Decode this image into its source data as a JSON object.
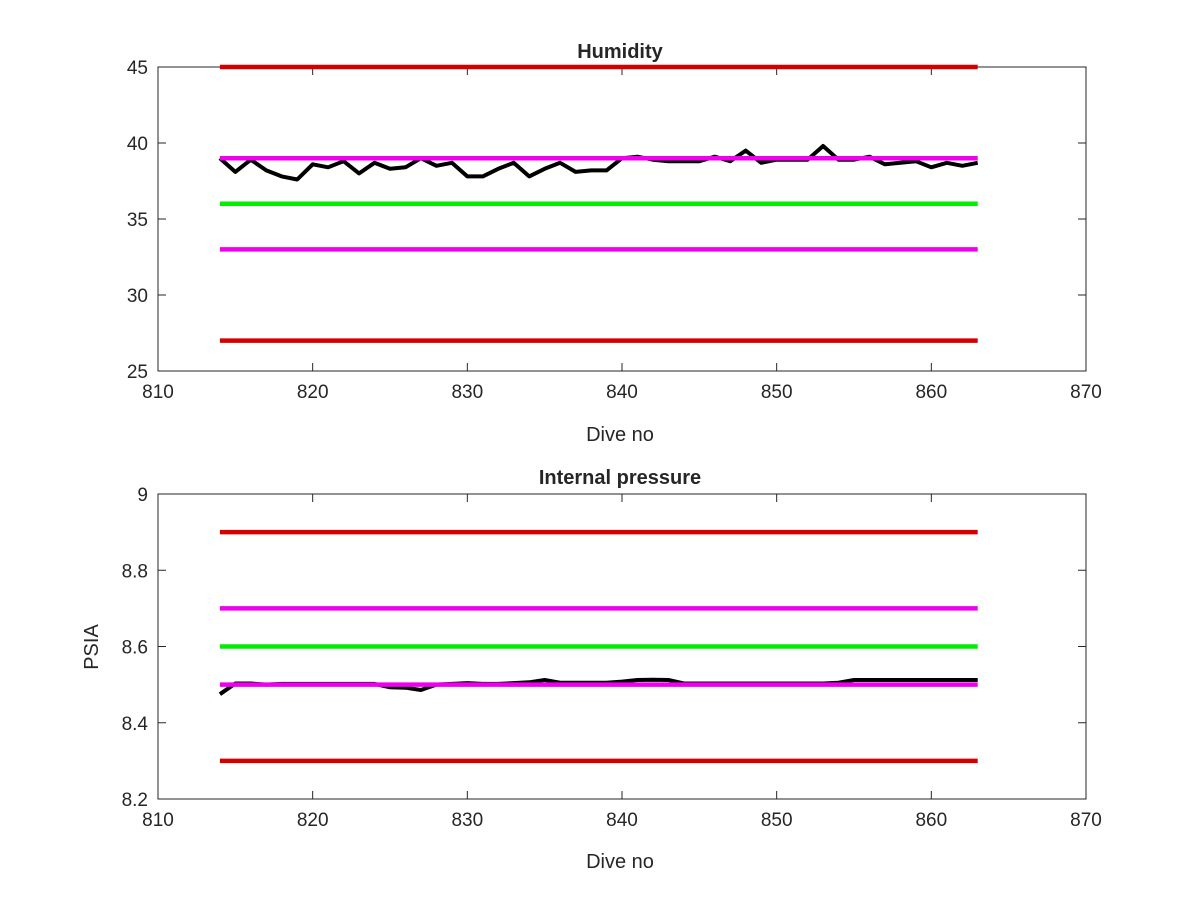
{
  "chart_data": [
    {
      "type": "line",
      "title": "Humidity",
      "xlabel": "Dive no",
      "ylabel": "",
      "xlim": [
        810,
        870
      ],
      "ylim": [
        25,
        45
      ],
      "xticks": [
        810,
        820,
        830,
        840,
        850,
        860,
        870
      ],
      "yticks": [
        25,
        30,
        35,
        40,
        45
      ],
      "grid": false,
      "series": [
        {
          "color": "#000000",
          "x": [
            814,
            815,
            816,
            817,
            818,
            819,
            820,
            821,
            822,
            823,
            824,
            825,
            826,
            827,
            828,
            829,
            830,
            831,
            832,
            833,
            834,
            835,
            836,
            837,
            838,
            839,
            840,
            841,
            842,
            843,
            844,
            845,
            846,
            847,
            848,
            849,
            850,
            851,
            852,
            853,
            854,
            855,
            856,
            857,
            858,
            859,
            860,
            861,
            862,
            863
          ],
          "y": [
            39.0,
            38.1,
            38.9,
            38.2,
            37.8,
            37.6,
            38.6,
            38.4,
            38.8,
            38.0,
            38.7,
            38.3,
            38.4,
            39.0,
            38.5,
            38.7,
            37.8,
            37.8,
            38.3,
            38.7,
            37.8,
            38.3,
            38.7,
            38.1,
            38.2,
            38.2,
            39.0,
            39.1,
            38.9,
            38.8,
            38.8,
            38.8,
            39.1,
            38.8,
            39.5,
            38.7,
            38.9,
            38.9,
            38.9,
            39.8,
            38.9,
            38.9,
            39.1,
            38.6,
            38.7,
            38.8,
            38.4,
            38.7,
            38.5,
            38.7
          ]
        },
        {
          "color": "#d40000",
          "x": [
            814,
            863
          ],
          "y": [
            45,
            45
          ]
        },
        {
          "color": "#ee00ee",
          "x": [
            814,
            863
          ],
          "y": [
            39,
            39
          ]
        },
        {
          "color": "#00ee00",
          "x": [
            814,
            863
          ],
          "y": [
            36,
            36
          ]
        },
        {
          "color": "#ee00ee",
          "x": [
            814,
            863
          ],
          "y": [
            33,
            33
          ]
        },
        {
          "color": "#d40000",
          "x": [
            814,
            863
          ],
          "y": [
            27,
            27
          ]
        }
      ]
    },
    {
      "type": "line",
      "title": "Internal pressure",
      "xlabel": "Dive no",
      "ylabel": "PSIA",
      "xlim": [
        810,
        870
      ],
      "ylim": [
        8.2,
        9
      ],
      "xticks": [
        810,
        820,
        830,
        840,
        850,
        860,
        870
      ],
      "yticks": [
        8.2,
        8.4,
        8.6,
        8.8,
        9
      ],
      "grid": false,
      "series": [
        {
          "color": "#000000",
          "x": [
            814,
            815,
            816,
            817,
            818,
            819,
            820,
            821,
            822,
            823,
            824,
            825,
            826,
            827,
            828,
            829,
            830,
            831,
            832,
            833,
            834,
            835,
            836,
            837,
            838,
            839,
            840,
            841,
            842,
            843,
            844,
            845,
            846,
            847,
            848,
            849,
            850,
            851,
            852,
            853,
            854,
            855,
            856,
            857,
            858,
            859,
            860,
            861,
            862,
            863
          ],
          "y": [
            8.475,
            8.503,
            8.503,
            8.5,
            8.502,
            8.502,
            8.502,
            8.502,
            8.502,
            8.502,
            8.502,
            8.493,
            8.492,
            8.486,
            8.5,
            8.502,
            8.504,
            8.502,
            8.502,
            8.504,
            8.506,
            8.512,
            8.505,
            8.505,
            8.505,
            8.505,
            8.508,
            8.512,
            8.513,
            8.512,
            8.503,
            8.503,
            8.503,
            8.503,
            8.503,
            8.503,
            8.503,
            8.503,
            8.503,
            8.503,
            8.505,
            8.512,
            8.512,
            8.512,
            8.512,
            8.512,
            8.512,
            8.512,
            8.512,
            8.512
          ]
        },
        {
          "color": "#d40000",
          "x": [
            814,
            863
          ],
          "y": [
            8.9,
            8.9
          ]
        },
        {
          "color": "#ee00ee",
          "x": [
            814,
            863
          ],
          "y": [
            8.7,
            8.7
          ]
        },
        {
          "color": "#00ee00",
          "x": [
            814,
            863
          ],
          "y": [
            8.6,
            8.6
          ]
        },
        {
          "color": "#ee00ee",
          "x": [
            814,
            863
          ],
          "y": [
            8.5,
            8.5
          ]
        },
        {
          "color": "#d40000",
          "x": [
            814,
            863
          ],
          "y": [
            8.3,
            8.3
          ]
        }
      ]
    }
  ]
}
